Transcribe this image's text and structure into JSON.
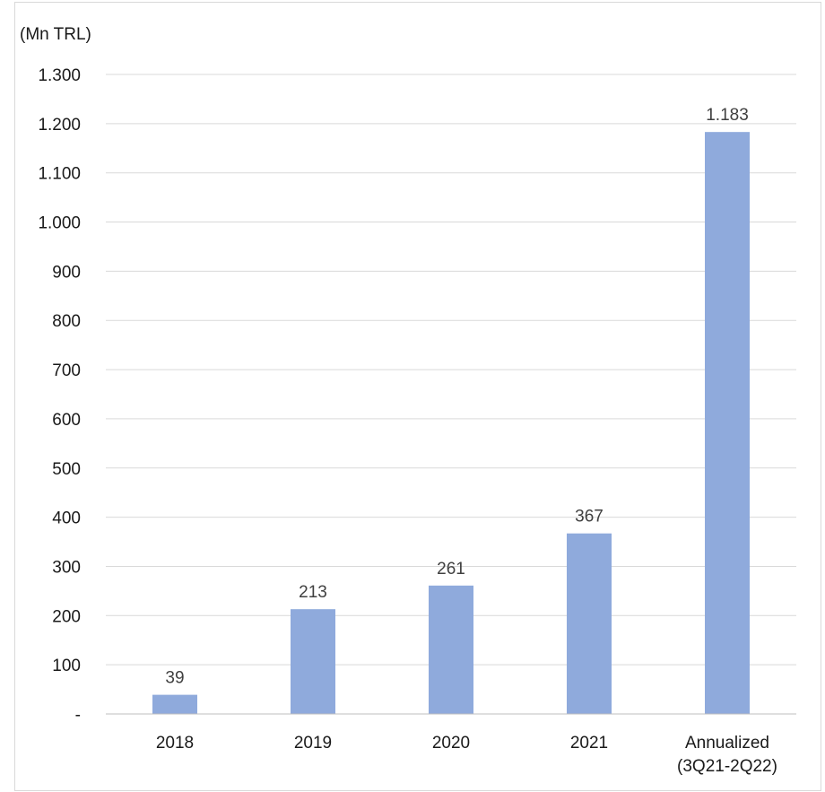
{
  "chart_data": {
    "type": "bar",
    "unit_label": "(Mn TRL)",
    "categories": [
      [
        "2018"
      ],
      [
        "2019"
      ],
      [
        "2020"
      ],
      [
        "2021"
      ],
      [
        "Annualized",
        "(3Q21-2Q22)"
      ]
    ],
    "values": [
      39,
      213,
      261,
      367,
      1183
    ],
    "data_labels": [
      "39",
      "213",
      "261",
      "367",
      "1.183"
    ],
    "ylim": [
      0,
      1300
    ],
    "yticks": [
      0,
      100,
      200,
      300,
      400,
      500,
      600,
      700,
      800,
      900,
      1000,
      1100,
      1200,
      1300
    ],
    "ytick_labels": [
      "-",
      "100",
      "200",
      "300",
      "400",
      "500",
      "600",
      "700",
      "800",
      "900",
      "1.000",
      "1.100",
      "1.200",
      "1.300"
    ],
    "grid": true,
    "bar_color": "#8faadc"
  }
}
